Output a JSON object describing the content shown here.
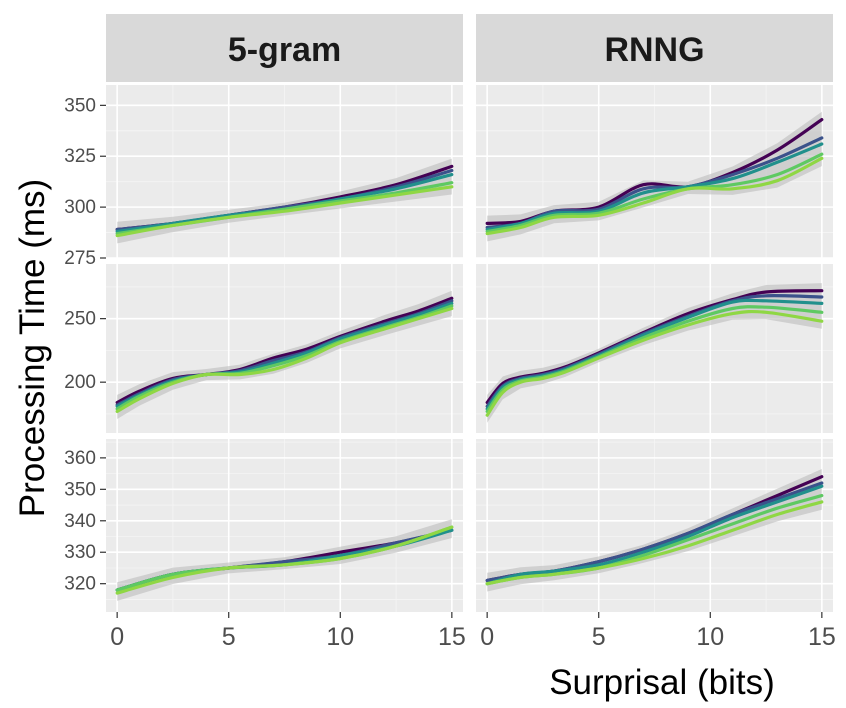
{
  "chart_data": {
    "type": "line",
    "xlabel": "Surprisal (bits)",
    "ylabel": "Processing Time (ms)",
    "x_ticks": [
      0,
      5,
      10,
      15
    ],
    "xlim": [
      -0.5,
      15.5
    ],
    "columns": [
      "5-gram",
      "RNNG"
    ],
    "series_colors": [
      "#440154",
      "#3b528b",
      "#21908c",
      "#5ec962",
      "#8fd744"
    ],
    "rows": [
      {
        "ylim": [
          275,
          360
        ],
        "y_ticks": [
          275,
          300,
          325,
          350
        ],
        "panels": [
          {
            "column": "5-gram",
            "x": [
              0,
              2.5,
              5,
              7.5,
              10,
              12.5,
              15
            ],
            "series": [
              {
                "values": [
                  289,
                  292,
                  296,
                  300,
                  305,
                  311,
                  320
                ]
              },
              {
                "values": [
                  289,
                  292,
                  296,
                  300,
                  304,
                  310,
                  318
                ]
              },
              {
                "values": [
                  288,
                  292,
                  296,
                  299,
                  304,
                  309,
                  316
                ]
              },
              {
                "values": [
                  287,
                  291,
                  295,
                  299,
                  303,
                  307,
                  312
                ]
              },
              {
                "values": [
                  286,
                  291,
                  295,
                  298,
                  302,
                  306,
                  310
                ]
              }
            ]
          },
          {
            "column": "RNNG",
            "x": [
              0,
              1.5,
              3,
              5,
              7,
              9,
              11,
              13,
              15
            ],
            "series": [
              {
                "values": [
                  292,
                  293,
                  298,
                  300,
                  311,
                  310,
                  317,
                  328,
                  343
                ]
              },
              {
                "values": [
                  290,
                  292,
                  298,
                  299,
                  309,
                  310,
                  316,
                  324,
                  334
                ]
              },
              {
                "values": [
                  289,
                  292,
                  297,
                  298,
                  307,
                  310,
                  314,
                  322,
                  331
                ]
              },
              {
                "values": [
                  288,
                  291,
                  296,
                  297,
                  304,
                  309,
                  311,
                  316,
                  326
                ]
              },
              {
                "values": [
                  287,
                  290,
                  295,
                  296,
                  302,
                  309,
                  309,
                  313,
                  324
                ]
              }
            ]
          }
        ]
      },
      {
        "ylim": [
          160,
          293
        ],
        "y_ticks": [
          200,
          250
        ],
        "panels": [
          {
            "column": "5-gram",
            "x": [
              0,
              1,
              2.5,
              4,
              5.5,
              7,
              8.5,
              10,
              12,
              13.5,
              15
            ],
            "series": [
              {
                "values": [
                  184,
                  193,
                  203,
                  206,
                  210,
                  219,
                  226,
                  236,
                  248,
                  256,
                  266
                ]
              },
              {
                "values": [
                  182,
                  191,
                  202,
                  206,
                  209,
                  217,
                  224,
                  235,
                  246,
                  254,
                  264
                ]
              },
              {
                "values": [
                  181,
                  190,
                  201,
                  206,
                  208,
                  215,
                  223,
                  234,
                  245,
                  253,
                  262
                ]
              },
              {
                "values": [
                  179,
                  189,
                  200,
                  206,
                  207,
                  213,
                  221,
                  232,
                  243,
                  251,
                  260
                ]
              },
              {
                "values": [
                  177,
                  187,
                  199,
                  206,
                  206,
                  210,
                  219,
                  231,
                  242,
                  250,
                  258
                ]
              }
            ]
          },
          {
            "column": "RNNG",
            "x": [
              0,
              0.7,
              1.5,
              2.5,
              3.5,
              5,
              7,
              9,
              11,
              12.5,
              15
            ],
            "series": [
              {
                "values": [
                  184,
                  199,
                  204,
                  207,
                  212,
                  223,
                  239,
                  254,
                  265,
                  271,
                  272
                ]
              },
              {
                "values": [
                  181,
                  197,
                  203,
                  206,
                  211,
                  222,
                  238,
                  252,
                  264,
                  268,
                  267
                ]
              },
              {
                "values": [
                  179,
                  196,
                  202,
                  205,
                  210,
                  221,
                  237,
                  251,
                  263,
                  264,
                  262
                ]
              },
              {
                "values": [
                  177,
                  194,
                  201,
                  204,
                  209,
                  220,
                  235,
                  248,
                  258,
                  259,
                  255
                ]
              },
              {
                "values": [
                  174,
                  192,
                  200,
                  203,
                  208,
                  219,
                  233,
                  245,
                  254,
                  255,
                  248
                ]
              }
            ]
          }
        ]
      },
      {
        "ylim": [
          311,
          366
        ],
        "y_ticks": [
          320,
          330,
          340,
          350,
          360
        ],
        "panels": [
          {
            "column": "5-gram",
            "x": [
              0,
              2.5,
              5,
              7.5,
              10,
              12.5,
              15
            ],
            "series": [
              {
                "values": [
                  318,
                  323,
                  325,
                  327,
                  330,
                  333,
                  337
                ]
              },
              {
                "values": [
                  318,
                  323,
                  325,
                  327,
                  329,
                  333,
                  337
                ]
              },
              {
                "values": [
                  318,
                  323,
                  325,
                  326,
                  329,
                  332,
                  337
                ]
              },
              {
                "values": [
                  318,
                  323,
                  325,
                  326,
                  328,
                  332,
                  338
                ]
              },
              {
                "values": [
                  317,
                  322,
                  325,
                  326,
                  328,
                  332,
                  338
                ]
              }
            ]
          },
          {
            "column": "RNNG",
            "x": [
              0,
              1.5,
              3,
              5,
              7,
              9,
              11,
              13,
              15
            ],
            "series": [
              {
                "values": [
                  321,
                  323,
                  324,
                  327,
                  331,
                  336,
                  342,
                  348,
                  354
                ]
              },
              {
                "values": [
                  321,
                  323,
                  324,
                  327,
                  331,
                  336,
                  342,
                  347,
                  352
                ]
              },
              {
                "values": [
                  320,
                  323,
                  324,
                  326,
                  330,
                  335,
                  341,
                  346,
                  351
                ]
              },
              {
                "values": [
                  320,
                  322,
                  323,
                  325,
                  329,
                  334,
                  339,
                  344,
                  348
                ]
              },
              {
                "values": [
                  320,
                  322,
                  323,
                  325,
                  328,
                  332,
                  337,
                  342,
                  346
                ]
              }
            ]
          }
        ]
      }
    ]
  }
}
